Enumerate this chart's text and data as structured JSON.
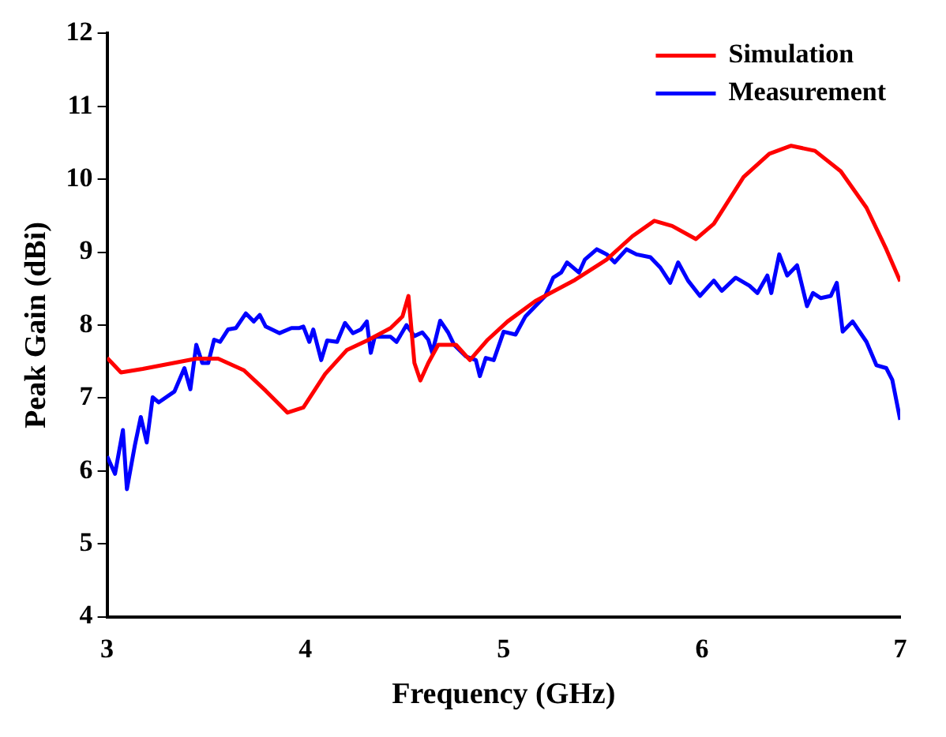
{
  "chart_data": {
    "type": "line",
    "xlabel": "Frequency (GHz)",
    "ylabel": "Peak Gain (dBi)",
    "xlim": [
      3,
      7
    ],
    "xticks": [
      3,
      4,
      5,
      6,
      7
    ],
    "ylim": [
      4,
      12
    ],
    "yticks": [
      4,
      5,
      6,
      7,
      8,
      9,
      10,
      11,
      12
    ],
    "grid": false,
    "legend": "top right",
    "marker": "none",
    "line_style": "solid",
    "series": [
      {
        "name": "Simulation",
        "color": "#ff0000",
        "x": [
          3.0,
          3.07,
          3.18,
          3.45,
          3.56,
          3.69,
          3.8,
          3.91,
          3.99,
          4.1,
          4.21,
          4.32,
          4.43,
          4.49,
          4.52,
          4.55,
          4.58,
          4.62,
          4.67,
          4.76,
          4.83,
          4.92,
          5.02,
          5.16,
          5.36,
          5.52,
          5.65,
          5.76,
          5.85,
          5.97,
          6.06,
          6.21,
          6.34,
          6.45,
          6.57,
          6.7,
          6.83,
          6.93,
          7.0
        ],
        "values": [
          7.55,
          7.35,
          7.4,
          7.54,
          7.54,
          7.38,
          7.1,
          6.8,
          6.87,
          7.33,
          7.66,
          7.8,
          7.96,
          8.12,
          8.4,
          7.48,
          7.24,
          7.48,
          7.73,
          7.73,
          7.52,
          7.8,
          8.05,
          8.33,
          8.62,
          8.9,
          9.22,
          9.43,
          9.36,
          9.18,
          9.39,
          10.03,
          10.35,
          10.46,
          10.39,
          10.11,
          9.61,
          9.04,
          8.6
        ]
      },
      {
        "name": "Measurement",
        "color": "#0000ff",
        "x": [
          3.0,
          3.04,
          3.08,
          3.1,
          3.14,
          3.17,
          3.2,
          3.23,
          3.26,
          3.34,
          3.39,
          3.42,
          3.45,
          3.48,
          3.51,
          3.54,
          3.57,
          3.61,
          3.65,
          3.7,
          3.74,
          3.77,
          3.8,
          3.87,
          3.93,
          3.97,
          3.99,
          4.02,
          4.04,
          4.08,
          4.11,
          4.16,
          4.2,
          4.24,
          4.28,
          4.31,
          4.33,
          4.35,
          4.43,
          4.46,
          4.51,
          4.55,
          4.59,
          4.62,
          4.64,
          4.68,
          4.72,
          4.75,
          4.81,
          4.86,
          4.88,
          4.91,
          4.95,
          5.0,
          5.06,
          5.11,
          5.16,
          5.21,
          5.25,
          5.29,
          5.32,
          5.38,
          5.41,
          5.47,
          5.52,
          5.56,
          5.62,
          5.67,
          5.74,
          5.79,
          5.84,
          5.88,
          5.93,
          5.99,
          6.06,
          6.1,
          6.17,
          6.24,
          6.28,
          6.33,
          6.35,
          6.39,
          6.43,
          6.48,
          6.53,
          6.56,
          6.6,
          6.65,
          6.68,
          6.71,
          6.76,
          6.83,
          6.88,
          6.93,
          6.96,
          7.0
        ],
        "values": [
          6.2,
          5.96,
          6.56,
          5.75,
          6.35,
          6.74,
          6.39,
          7.01,
          6.94,
          7.09,
          7.41,
          7.12,
          7.73,
          7.48,
          7.48,
          7.8,
          7.77,
          7.94,
          7.96,
          8.16,
          8.05,
          8.14,
          7.98,
          7.89,
          7.96,
          7.96,
          7.98,
          7.77,
          7.94,
          7.52,
          7.79,
          7.77,
          8.03,
          7.89,
          7.94,
          8.05,
          7.62,
          7.84,
          7.84,
          7.77,
          8.0,
          7.85,
          7.9,
          7.8,
          7.62,
          8.06,
          7.9,
          7.73,
          7.57,
          7.52,
          7.3,
          7.55,
          7.52,
          7.91,
          7.87,
          8.12,
          8.26,
          8.4,
          8.65,
          8.72,
          8.86,
          8.72,
          8.9,
          9.04,
          8.97,
          8.86,
          9.04,
          8.97,
          8.93,
          8.79,
          8.58,
          8.86,
          8.61,
          8.4,
          8.61,
          8.47,
          8.65,
          8.54,
          8.44,
          8.68,
          8.44,
          8.97,
          8.68,
          8.82,
          8.26,
          8.44,
          8.37,
          8.4,
          8.58,
          7.91,
          8.05,
          7.77,
          7.45,
          7.41,
          7.25,
          6.7
        ]
      }
    ]
  }
}
